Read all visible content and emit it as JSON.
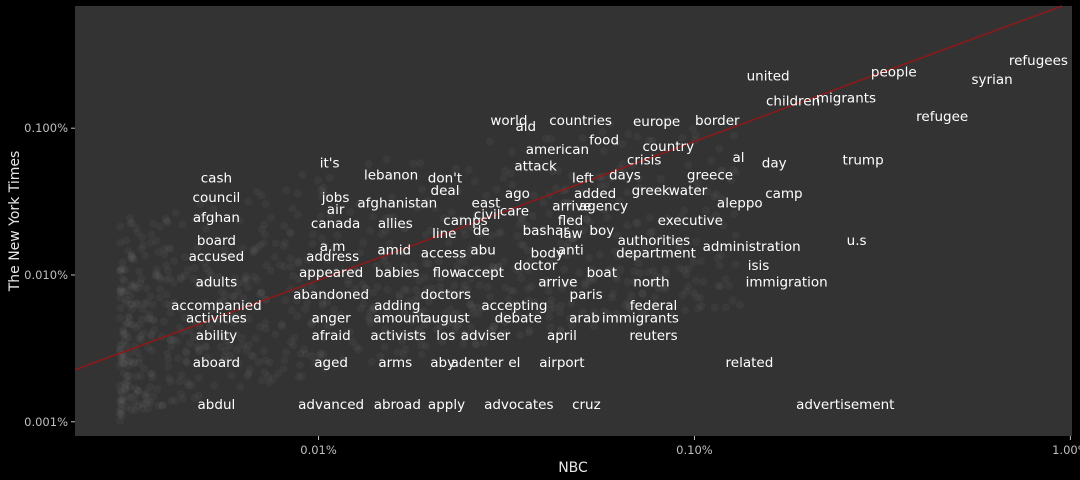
{
  "chart_data": {
    "type": "scatter",
    "title": "",
    "xlabel": "NBC",
    "ylabel": "The New York Times",
    "x_scale": "log10",
    "y_scale": "log10",
    "xlim": [
      2.25e-05,
      0.0101
    ],
    "ylim": [
      8e-06,
      0.0068
    ],
    "x_ticks": [
      {
        "value": 0.0001,
        "label": "0.01%"
      },
      {
        "value": 0.001,
        "label": "0.10%"
      },
      {
        "value": 0.01,
        "label": "1.00%"
      }
    ],
    "y_ticks": [
      {
        "value": 1e-05,
        "label": "0.001%"
      },
      {
        "value": 0.0001,
        "label": "0.010%"
      },
      {
        "value": 0.001,
        "label": "0.100%"
      }
    ],
    "grid": false,
    "colors": {
      "background": "#000000",
      "panel": "#333333",
      "label": "#ffffff",
      "trend_line": "#8b1a1a",
      "points": "#808080"
    },
    "trend_line": {
      "x": [
        2.25e-05,
        0.0095
      ],
      "y": [
        2.26e-05,
        0.0068
      ]
    },
    "words": [
      {
        "label": "refugees",
        "x": 0.00822,
        "y": 0.00288
      },
      {
        "label": "syrian",
        "x": 0.00619,
        "y": 0.00213
      },
      {
        "label": "people",
        "x": 0.00339,
        "y": 0.0024
      },
      {
        "label": "united",
        "x": 0.00157,
        "y": 0.00225
      },
      {
        "label": "migrants",
        "x": 0.00253,
        "y": 0.00159
      },
      {
        "label": "children",
        "x": 0.00183,
        "y": 0.00152
      },
      {
        "label": "refugee",
        "x": 0.00456,
        "y": 0.00119
      },
      {
        "label": "world",
        "x": 0.000321,
        "y": 0.00112
      },
      {
        "label": "aid",
        "x": 0.000356,
        "y": 0.00102
      },
      {
        "label": "countries",
        "x": 0.000498,
        "y": 0.00112
      },
      {
        "label": "europe",
        "x": 0.000793,
        "y": 0.0011
      },
      {
        "label": "border",
        "x": 0.00115,
        "y": 0.00112
      },
      {
        "label": "food",
        "x": 0.000575,
        "y": 0.000826
      },
      {
        "label": "american",
        "x": 0.000432,
        "y": 0.000711
      },
      {
        "label": "country",
        "x": 0.000852,
        "y": 0.000743
      },
      {
        "label": "crisis",
        "x": 0.000735,
        "y": 0.000602
      },
      {
        "label": "al",
        "x": 0.00131,
        "y": 0.000625
      },
      {
        "label": "day",
        "x": 0.00163,
        "y": 0.000574
      },
      {
        "label": "trump",
        "x": 0.00281,
        "y": 0.000602
      },
      {
        "label": "it's",
        "x": 0.000107,
        "y": 0.000574
      },
      {
        "label": "attack",
        "x": 0.000378,
        "y": 0.000548
      },
      {
        "label": "lebanon",
        "x": 0.000156,
        "y": 0.000476
      },
      {
        "label": "don't",
        "x": 0.000217,
        "y": 0.000453
      },
      {
        "label": "days",
        "x": 0.000653,
        "y": 0.000476
      },
      {
        "label": "greece",
        "x": 0.0011,
        "y": 0.000476
      },
      {
        "label": "left",
        "x": 0.000505,
        "y": 0.000453
      },
      {
        "label": "cash",
        "x": 5.35e-05,
        "y": 0.000453
      },
      {
        "label": "deal",
        "x": 0.000217,
        "y": 0.000374
      },
      {
        "label": "ago",
        "x": 0.000338,
        "y": 0.000356
      },
      {
        "label": "added",
        "x": 0.000544,
        "y": 0.000356
      },
      {
        "label": "greek",
        "x": 0.000765,
        "y": 0.000374
      },
      {
        "label": "water",
        "x": 0.000961,
        "y": 0.000374
      },
      {
        "label": "camp",
        "x": 0.00173,
        "y": 0.000356
      },
      {
        "label": "jobs",
        "x": 0.000111,
        "y": 0.000335
      },
      {
        "label": "council",
        "x": 5.35e-05,
        "y": 0.000335
      },
      {
        "label": "afghanistan",
        "x": 0.000162,
        "y": 0.000308
      },
      {
        "label": "east",
        "x": 0.000279,
        "y": 0.000308
      },
      {
        "label": "arrive",
        "x": 0.000472,
        "y": 0.000293
      },
      {
        "label": "agency",
        "x": 0.000573,
        "y": 0.000293
      },
      {
        "label": "aleppo",
        "x": 0.00132,
        "y": 0.000308
      },
      {
        "label": "air",
        "x": 0.000111,
        "y": 0.000278
      },
      {
        "label": "civil",
        "x": 0.000281,
        "y": 0.000256
      },
      {
        "label": "care",
        "x": 0.000332,
        "y": 0.00027
      },
      {
        "label": "afghan",
        "x": 5.35e-05,
        "y": 0.000245
      },
      {
        "label": "camps",
        "x": 0.000246,
        "y": 0.000233
      },
      {
        "label": "fled",
        "x": 0.000468,
        "y": 0.000233
      },
      {
        "label": "executive",
        "x": 0.000975,
        "y": 0.000233
      },
      {
        "label": "canada",
        "x": 0.000111,
        "y": 0.000223
      },
      {
        "label": "allies",
        "x": 0.00016,
        "y": 0.000223
      },
      {
        "label": "de",
        "x": 0.000271,
        "y": 0.0002
      },
      {
        "label": "bashar",
        "x": 0.000402,
        "y": 0.0002
      },
      {
        "label": "law",
        "x": 0.00047,
        "y": 0.00019
      },
      {
        "label": "boy",
        "x": 0.000567,
        "y": 0.0002
      },
      {
        "label": "line",
        "x": 0.000216,
        "y": 0.00019
      },
      {
        "label": "authorities",
        "x": 0.00078,
        "y": 0.000171
      },
      {
        "label": "board",
        "x": 5.35e-05,
        "y": 0.000171
      },
      {
        "label": "u.s",
        "x": 0.0027,
        "y": 0.000171
      },
      {
        "label": "a.m",
        "x": 0.000109,
        "y": 0.000155
      },
      {
        "label": "administration",
        "x": 0.00142,
        "y": 0.000155
      },
      {
        "label": "amid",
        "x": 0.000159,
        "y": 0.000147
      },
      {
        "label": "abu",
        "x": 0.000274,
        "y": 0.000147
      },
      {
        "label": "anti",
        "x": 0.000469,
        "y": 0.000147
      },
      {
        "label": "access",
        "x": 0.000215,
        "y": 0.00014
      },
      {
        "label": "body",
        "x": 0.000406,
        "y": 0.00014
      },
      {
        "label": "department",
        "x": 0.00079,
        "y": 0.00014
      },
      {
        "label": "accused",
        "x": 5.35e-05,
        "y": 0.000133
      },
      {
        "label": "address",
        "x": 0.000109,
        "y": 0.000133
      },
      {
        "label": "doctor",
        "x": 0.000378,
        "y": 0.000115
      },
      {
        "label": "isis",
        "x": 0.00148,
        "y": 0.000115
      },
      {
        "label": "appeared",
        "x": 0.000108,
        "y": 0.000103
      },
      {
        "label": "babies",
        "x": 0.000162,
        "y": 0.000103
      },
      {
        "label": "flow",
        "x": 0.000219,
        "y": 0.000103
      },
      {
        "label": "accept",
        "x": 0.000271,
        "y": 0.000103
      },
      {
        "label": "boat",
        "x": 0.000567,
        "y": 0.000103
      },
      {
        "label": "arrive",
        "x": 0.000433,
        "y": 8.86e-05
      },
      {
        "label": "north",
        "x": 0.000768,
        "y": 8.86e-05
      },
      {
        "label": "immigration",
        "x": 0.00176,
        "y": 8.86e-05
      },
      {
        "label": "adults",
        "x": 5.35e-05,
        "y": 8.86e-05
      },
      {
        "label": "abandoned",
        "x": 0.000108,
        "y": 7.29e-05
      },
      {
        "label": "doctors",
        "x": 0.000218,
        "y": 7.29e-05
      },
      {
        "label": "paris",
        "x": 0.000515,
        "y": 7.29e-05
      },
      {
        "label": "accompanied",
        "x": 5.35e-05,
        "y": 6.14e-05
      },
      {
        "label": "adding",
        "x": 0.000162,
        "y": 6.14e-05
      },
      {
        "label": "accepting",
        "x": 0.000332,
        "y": 6.14e-05
      },
      {
        "label": "federal",
        "x": 0.000778,
        "y": 6.14e-05
      },
      {
        "label": "activities",
        "x": 5.35e-05,
        "y": 5.06e-05
      },
      {
        "label": "anger",
        "x": 0.000108,
        "y": 5.06e-05
      },
      {
        "label": "amount",
        "x": 0.000164,
        "y": 5.06e-05
      },
      {
        "label": "august",
        "x": 0.000219,
        "y": 5.06e-05
      },
      {
        "label": "debate",
        "x": 0.00034,
        "y": 5.06e-05
      },
      {
        "label": "arab",
        "x": 0.00051,
        "y": 5.06e-05
      },
      {
        "label": "immigrants",
        "x": 0.000718,
        "y": 5.06e-05
      },
      {
        "label": "ability",
        "x": 5.35e-05,
        "y": 3.83e-05
      },
      {
        "label": "afraid",
        "x": 0.000108,
        "y": 3.83e-05
      },
      {
        "label": "activists",
        "x": 0.000163,
        "y": 3.83e-05
      },
      {
        "label": "los",
        "x": 0.000218,
        "y": 3.83e-05
      },
      {
        "label": "adviser",
        "x": 0.000278,
        "y": 3.83e-05
      },
      {
        "label": "april",
        "x": 0.000444,
        "y": 3.83e-05
      },
      {
        "label": "reuters",
        "x": 0.000778,
        "y": 3.83e-05
      },
      {
        "label": "aboard",
        "x": 5.35e-05,
        "y": 2.52e-05
      },
      {
        "label": "aged",
        "x": 0.000108,
        "y": 2.52e-05
      },
      {
        "label": "arms",
        "x": 0.00016,
        "y": 2.52e-05
      },
      {
        "label": "aby",
        "x": 0.000214,
        "y": 2.52e-05
      },
      {
        "label": "adenter",
        "x": 0.000264,
        "y": 2.52e-05
      },
      {
        "label": "el",
        "x": 0.000332,
        "y": 2.52e-05
      },
      {
        "label": "airport",
        "x": 0.000444,
        "y": 2.52e-05
      },
      {
        "label": "related",
        "x": 0.0014,
        "y": 2.52e-05
      },
      {
        "label": "abdul",
        "x": 5.35e-05,
        "y": 1.3e-05
      },
      {
        "label": "advanced",
        "x": 0.000108,
        "y": 1.3e-05
      },
      {
        "label": "abroad",
        "x": 0.000162,
        "y": 1.3e-05
      },
      {
        "label": "apply",
        "x": 0.000219,
        "y": 1.3e-05
      },
      {
        "label": "advocates",
        "x": 0.000341,
        "y": 1.3e-05
      },
      {
        "label": "cruz",
        "x": 0.000516,
        "y": 1.3e-05
      },
      {
        "label": "advertisement",
        "x": 0.00252,
        "y": 1.3e-05
      }
    ]
  }
}
